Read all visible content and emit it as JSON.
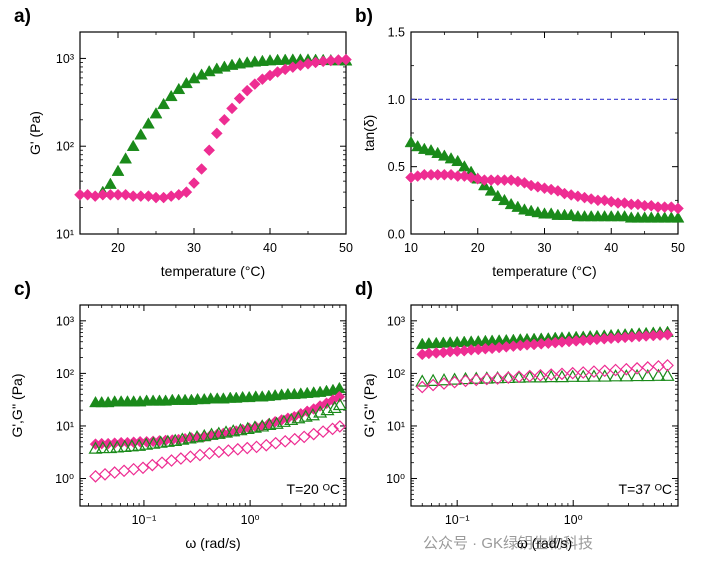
{
  "watermark": "公众号 · GK绿钥生物科技",
  "colors": {
    "green": "#1a8a1a",
    "pink": "#ee2d92",
    "reference": "#3a3ad0"
  },
  "chart_data": [
    {
      "id": "a",
      "panel_label": "a)",
      "type": "scatter",
      "xlabel": "temperature (°C)",
      "ylabel": "G' (Pa)",
      "xscale": "linear",
      "yscale": "log",
      "xlim": [
        15,
        50
      ],
      "ylim": [
        10,
        2000
      ],
      "xticks": [
        20,
        30,
        40,
        50
      ],
      "xtick_labels": [
        "20",
        "30",
        "40",
        "50"
      ],
      "yticks": [
        10,
        100,
        1000
      ],
      "ytick_labels": [
        "10¹",
        "10²",
        "10³"
      ],
      "series": [
        {
          "color": "green",
          "marker": "triangle",
          "filled": true,
          "x": [
            18,
            19,
            20,
            21,
            22,
            23,
            24,
            25,
            26,
            27,
            28,
            29,
            30,
            31,
            32,
            33,
            34,
            35,
            36,
            37,
            38,
            39,
            40,
            41,
            42,
            43,
            44,
            45,
            46,
            47,
            48,
            49,
            50
          ],
          "y": [
            30,
            37,
            52,
            72,
            100,
            135,
            180,
            235,
            300,
            370,
            445,
            520,
            590,
            650,
            710,
            760,
            800,
            840,
            870,
            895,
            915,
            930,
            945,
            955,
            960,
            965,
            965,
            965,
            960,
            955,
            950,
            945,
            940
          ]
        },
        {
          "color": "pink",
          "marker": "diamond",
          "filled": true,
          "x": [
            15,
            16,
            17,
            18,
            19,
            20,
            21,
            22,
            23,
            24,
            25,
            26,
            27,
            28,
            29,
            30,
            31,
            32,
            33,
            34,
            35,
            36,
            37,
            38,
            39,
            40,
            41,
            42,
            43,
            44,
            45,
            46,
            47,
            48,
            49,
            50
          ],
          "y": [
            28,
            28,
            27,
            28,
            28,
            28,
            28,
            27,
            27,
            27,
            26,
            26,
            27,
            28,
            30,
            38,
            55,
            90,
            140,
            200,
            270,
            350,
            430,
            510,
            580,
            640,
            700,
            750,
            795,
            835,
            870,
            900,
            925,
            945,
            960,
            970
          ]
        }
      ]
    },
    {
      "id": "b",
      "panel_label": "b)",
      "type": "scatter",
      "xlabel": "temperature (°C)",
      "ylabel": "tan(δ)",
      "xscale": "linear",
      "yscale": "linear",
      "xlim": [
        10,
        50
      ],
      "ylim": [
        0,
        1.5
      ],
      "xticks": [
        10,
        20,
        30,
        40,
        50
      ],
      "xtick_labels": [
        "10",
        "20",
        "30",
        "40",
        "50"
      ],
      "yticks": [
        0,
        0.5,
        1.0,
        1.5
      ],
      "ytick_labels": [
        "0.0",
        "0.5",
        "1.0",
        "1.5"
      ],
      "reference_line": {
        "y": 1.0,
        "style": "dashed",
        "color": "reference"
      },
      "series": [
        {
          "color": "green",
          "marker": "triangle",
          "filled": true,
          "x": [
            10,
            11,
            12,
            13,
            14,
            15,
            16,
            17,
            18,
            19,
            20,
            21,
            22,
            23,
            24,
            25,
            26,
            27,
            28,
            29,
            30,
            31,
            32,
            33,
            34,
            35,
            36,
            37,
            38,
            39,
            40,
            41,
            42,
            43,
            44,
            45,
            46,
            47,
            48,
            49,
            50
          ],
          "y": [
            0.68,
            0.65,
            0.63,
            0.62,
            0.6,
            0.58,
            0.56,
            0.54,
            0.5,
            0.46,
            0.41,
            0.36,
            0.32,
            0.28,
            0.25,
            0.22,
            0.2,
            0.18,
            0.17,
            0.16,
            0.15,
            0.15,
            0.14,
            0.14,
            0.14,
            0.13,
            0.13,
            0.13,
            0.13,
            0.13,
            0.13,
            0.13,
            0.13,
            0.12,
            0.12,
            0.12,
            0.12,
            0.12,
            0.12,
            0.12,
            0.12
          ]
        },
        {
          "color": "pink",
          "marker": "diamond",
          "filled": true,
          "x": [
            10,
            11,
            12,
            13,
            14,
            15,
            16,
            17,
            18,
            19,
            20,
            21,
            22,
            23,
            24,
            25,
            26,
            27,
            28,
            29,
            30,
            31,
            32,
            33,
            34,
            35,
            36,
            37,
            38,
            39,
            40,
            41,
            42,
            43,
            44,
            45,
            46,
            47,
            48,
            49,
            50
          ],
          "y": [
            0.42,
            0.43,
            0.44,
            0.44,
            0.44,
            0.44,
            0.44,
            0.43,
            0.43,
            0.42,
            0.41,
            0.4,
            0.4,
            0.4,
            0.4,
            0.4,
            0.39,
            0.38,
            0.36,
            0.35,
            0.34,
            0.33,
            0.32,
            0.3,
            0.29,
            0.28,
            0.27,
            0.26,
            0.25,
            0.25,
            0.24,
            0.23,
            0.23,
            0.22,
            0.22,
            0.21,
            0.21,
            0.2,
            0.2,
            0.2,
            0.19
          ]
        }
      ]
    },
    {
      "id": "c",
      "panel_label": "c)",
      "type": "scatter",
      "xlabel": "ω (rad/s)",
      "ylabel": "G',G'' (Pa)",
      "xscale": "log",
      "yscale": "log",
      "xlim": [
        0.025,
        8
      ],
      "ylim": [
        0.3,
        2000
      ],
      "xticks": [
        0.1,
        1
      ],
      "xtick_labels": [
        "10⁻¹",
        "10⁰"
      ],
      "yticks": [
        1,
        10,
        100,
        1000
      ],
      "ytick_labels": [
        "10⁰",
        "10¹",
        "10²",
        "10³"
      ],
      "annotation": "T=20 ᴼC",
      "series": [
        {
          "color": "green",
          "marker": "triangle",
          "filled": true,
          "x": [
            0.035,
            0.04,
            0.046,
            0.053,
            0.061,
            0.07,
            0.08,
            0.092,
            0.106,
            0.122,
            0.14,
            0.16,
            0.185,
            0.212,
            0.244,
            0.28,
            0.32,
            0.37,
            0.425,
            0.49,
            0.56,
            0.65,
            0.74,
            0.85,
            0.98,
            1.13,
            1.3,
            1.5,
            1.72,
            1.98,
            2.27,
            2.61,
            3.0,
            3.45,
            3.97,
            4.56,
            5.24,
            6.03,
            6.93
          ],
          "y": [
            28,
            28,
            28,
            29,
            29,
            29,
            29,
            29,
            30,
            30,
            30,
            30,
            31,
            31,
            31,
            31,
            32,
            32,
            33,
            33,
            33,
            34,
            34,
            35,
            35,
            36,
            36,
            37,
            38,
            39,
            40,
            40,
            41,
            42,
            43,
            44,
            46,
            48,
            52
          ]
        },
        {
          "color": "pink",
          "marker": "diamond",
          "filled": true,
          "x": [
            0.035,
            0.04,
            0.046,
            0.053,
            0.061,
            0.07,
            0.08,
            0.092,
            0.106,
            0.122,
            0.14,
            0.16,
            0.185,
            0.212,
            0.244,
            0.28,
            0.32,
            0.37,
            0.425,
            0.49,
            0.56,
            0.65,
            0.74,
            0.85,
            0.98,
            1.13,
            1.3,
            1.5,
            1.72,
            1.98,
            2.27,
            2.61,
            3.0,
            3.45,
            3.97,
            4.56,
            5.24,
            6.03,
            6.93
          ],
          "y": [
            4.5,
            4.6,
            4.6,
            4.7,
            4.8,
            4.8,
            4.9,
            5.0,
            5.0,
            5.1,
            5.2,
            5.3,
            5.4,
            5.5,
            5.7,
            5.9,
            6.1,
            6.3,
            6.6,
            6.9,
            7.2,
            7.6,
            8.0,
            8.5,
            9.0,
            9.6,
            10,
            11,
            12,
            13,
            14,
            15,
            17,
            19,
            21,
            24,
            27,
            31,
            36
          ]
        },
        {
          "color": "green",
          "marker": "triangle",
          "filled": false,
          "x": [
            0.035,
            0.041,
            0.048,
            0.056,
            0.066,
            0.077,
            0.09,
            0.105,
            0.123,
            0.144,
            0.168,
            0.197,
            0.23,
            0.27,
            0.316,
            0.37,
            0.433,
            0.507,
            0.593,
            0.694,
            0.812,
            0.95,
            1.11,
            1.3,
            1.52,
            1.78,
            2.08,
            2.44,
            2.85,
            3.34,
            3.9,
            4.57,
            5.35,
            6.26,
            7.0
          ],
          "y": [
            3.7,
            3.8,
            3.8,
            3.9,
            4.0,
            4.1,
            4.2,
            4.4,
            4.6,
            4.8,
            5.0,
            5.2,
            5.5,
            5.8,
            6.1,
            6.4,
            6.8,
            7.1,
            7.5,
            7.9,
            8.3,
            8.8,
            9.3,
            9.8,
            10.5,
            11,
            12,
            13,
            14,
            15,
            16,
            18,
            20,
            22,
            25
          ]
        },
        {
          "color": "pink",
          "marker": "diamond",
          "filled": false,
          "x": [
            0.035,
            0.043,
            0.053,
            0.065,
            0.08,
            0.098,
            0.12,
            0.148,
            0.182,
            0.223,
            0.274,
            0.337,
            0.414,
            0.508,
            0.624,
            0.766,
            0.94,
            1.15,
            1.42,
            1.74,
            2.14,
            2.63,
            3.23,
            3.97,
            4.87,
            5.98,
            7.0
          ],
          "y": [
            1.1,
            1.2,
            1.3,
            1.4,
            1.5,
            1.6,
            1.8,
            2.0,
            2.2,
            2.4,
            2.6,
            2.8,
            3.0,
            3.2,
            3.4,
            3.6,
            3.8,
            4.0,
            4.3,
            4.7,
            5.1,
            5.6,
            6.2,
            7.0,
            7.8,
            8.8,
            9.8
          ]
        }
      ]
    },
    {
      "id": "d",
      "panel_label": "d)",
      "type": "scatter",
      "xlabel": "ω (rad/s)",
      "ylabel": "G',G'' (Pa)",
      "xscale": "log",
      "yscale": "log",
      "xlim": [
        0.04,
        8
      ],
      "ylim": [
        0.3,
        2000
      ],
      "xticks": [
        0.1,
        1
      ],
      "xtick_labels": [
        "10⁻¹",
        "10⁰"
      ],
      "yticks": [
        1,
        10,
        100,
        1000
      ],
      "ytick_labels": [
        "10⁰",
        "10¹",
        "10²",
        "10³"
      ],
      "annotation": "T=37 ᴼC",
      "series": [
        {
          "color": "green",
          "marker": "triangle",
          "filled": true,
          "x": [
            0.05,
            0.057,
            0.066,
            0.076,
            0.087,
            0.1,
            0.115,
            0.132,
            0.152,
            0.175,
            0.2,
            0.23,
            0.265,
            0.305,
            0.35,
            0.4,
            0.46,
            0.53,
            0.61,
            0.7,
            0.8,
            0.92,
            1.06,
            1.22,
            1.4,
            1.6,
            1.85,
            2.12,
            2.44,
            2.8,
            3.2,
            3.7,
            4.25,
            4.9,
            5.6,
            6.5
          ],
          "y": [
            360,
            370,
            375,
            380,
            385,
            390,
            395,
            400,
            405,
            410,
            415,
            420,
            425,
            430,
            440,
            445,
            450,
            455,
            460,
            470,
            475,
            480,
            490,
            495,
            505,
            515,
            520,
            530,
            540,
            550,
            560,
            570,
            580,
            590,
            600,
            610
          ]
        },
        {
          "color": "pink",
          "marker": "diamond",
          "filled": true,
          "x": [
            0.05,
            0.057,
            0.066,
            0.076,
            0.087,
            0.1,
            0.115,
            0.132,
            0.152,
            0.175,
            0.2,
            0.23,
            0.265,
            0.305,
            0.35,
            0.4,
            0.46,
            0.53,
            0.61,
            0.7,
            0.8,
            0.92,
            1.06,
            1.22,
            1.4,
            1.6,
            1.85,
            2.12,
            2.44,
            2.8,
            3.2,
            3.7,
            4.25,
            4.9,
            5.6,
            6.5
          ],
          "y": [
            230,
            240,
            245,
            250,
            260,
            265,
            270,
            280,
            285,
            295,
            300,
            310,
            320,
            330,
            340,
            350,
            355,
            365,
            375,
            385,
            395,
            405,
            415,
            425,
            435,
            445,
            455,
            465,
            475,
            485,
            495,
            505,
            515,
            525,
            535,
            545
          ]
        },
        {
          "color": "green",
          "marker": "triangle",
          "filled": false,
          "x": [
            0.05,
            0.062,
            0.077,
            0.095,
            0.118,
            0.146,
            0.18,
            0.223,
            0.276,
            0.341,
            0.422,
            0.522,
            0.646,
            0.8,
            0.99,
            1.22,
            1.51,
            1.87,
            2.32,
            2.87,
            3.55,
            4.39,
            5.43,
            6.5
          ],
          "y": [
            70,
            72,
            74,
            76,
            78,
            79,
            80,
            81,
            82,
            83,
            84,
            84,
            85,
            85,
            86,
            86,
            87,
            87,
            88,
            88,
            89,
            89,
            90,
            90
          ]
        },
        {
          "color": "pink",
          "marker": "diamond",
          "filled": false,
          "x": [
            0.05,
            0.062,
            0.077,
            0.095,
            0.118,
            0.146,
            0.18,
            0.223,
            0.276,
            0.341,
            0.422,
            0.522,
            0.646,
            0.8,
            0.99,
            1.22,
            1.51,
            1.87,
            2.32,
            2.87,
            3.55,
            4.39,
            5.43,
            6.5
          ],
          "y": [
            55,
            60,
            64,
            68,
            72,
            75,
            78,
            80,
            83,
            86,
            89,
            92,
            95,
            98,
            101,
            104,
            108,
            112,
            116,
            120,
            125,
            130,
            136,
            142
          ]
        }
      ]
    }
  ]
}
